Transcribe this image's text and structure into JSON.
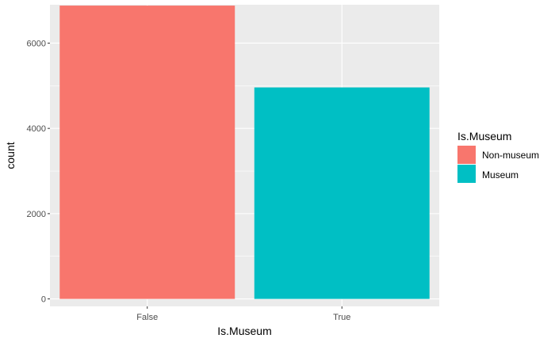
{
  "chart_data": {
    "type": "bar",
    "categories": [
      "False",
      "True"
    ],
    "values": [
      6880,
      4960
    ],
    "colors": [
      "#F8766D",
      "#00BFC4"
    ],
    "xlabel": "Is.Museum",
    "ylabel": "count",
    "ylim": [
      -175,
      6900
    ],
    "yticks": [
      0,
      2000,
      4000,
      6000
    ],
    "y_tick_labels": [
      "0",
      "2000",
      "4000",
      "6000"
    ],
    "grid": true,
    "panel_background": "#EBEBEB",
    "legend": {
      "title": "Is.Museum",
      "placement": "right",
      "entries": [
        {
          "label": "Non-museum",
          "color": "#F8766D"
        },
        {
          "label": "Museum",
          "color": "#00BFC4"
        }
      ]
    }
  }
}
